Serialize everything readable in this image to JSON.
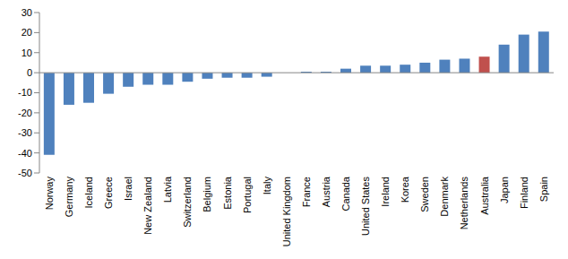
{
  "chart_data": {
    "type": "bar",
    "categories": [
      "Norway",
      "Germany",
      "Iceland",
      "Greece",
      "Israel",
      "New Zealand",
      "Latvia",
      "Switzerland",
      "Belgium",
      "Estonia",
      "Portugal",
      "Italy",
      "United Kingdom",
      "France",
      "Austria",
      "Canada",
      "United States",
      "Ireland",
      "Korea",
      "Sweden",
      "Denmark",
      "Netherlands",
      "Australia",
      "Japan",
      "Finland",
      "Spain"
    ],
    "values": [
      -41,
      -16,
      -15,
      -10.5,
      -7,
      -6,
      -6,
      -4.5,
      -3,
      -2.5,
      -2.5,
      -2,
      0,
      0.5,
      0.5,
      2,
      3.5,
      3.5,
      4,
      5,
      6.5,
      7,
      8,
      14,
      19,
      20.5
    ],
    "colors": [
      "#4f81bd",
      "#4f81bd",
      "#4f81bd",
      "#4f81bd",
      "#4f81bd",
      "#4f81bd",
      "#4f81bd",
      "#4f81bd",
      "#4f81bd",
      "#4f81bd",
      "#4f81bd",
      "#4f81bd",
      "#4f81bd",
      "#4f81bd",
      "#4f81bd",
      "#4f81bd",
      "#4f81bd",
      "#4f81bd",
      "#4f81bd",
      "#4f81bd",
      "#4f81bd",
      "#4f81bd",
      "#c0504d",
      "#4f81bd",
      "#4f81bd",
      "#4f81bd"
    ],
    "ylim": [
      -50,
      30
    ],
    "yticks": [
      -50,
      -40,
      -30,
      -20,
      -10,
      0,
      10,
      20,
      30
    ],
    "grid": false
  }
}
